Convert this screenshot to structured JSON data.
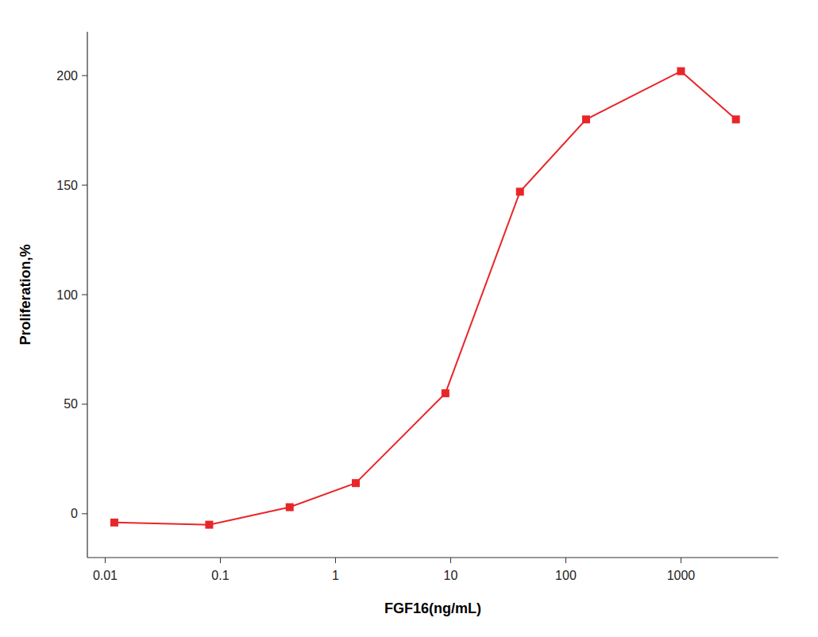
{
  "chart_data": {
    "type": "line",
    "x": [
      0.012,
      0.08,
      0.4,
      1.5,
      9.0,
      40.0,
      150.0,
      1000.0,
      3000.0
    ],
    "values": [
      -4.0,
      -5.0,
      3.0,
      14.0,
      55.0,
      147.0,
      180.0,
      202.0,
      180.0
    ],
    "color": "#e8262a",
    "marker": "square",
    "line_style": "solid",
    "xlabel": "FGF16(ng/mL)",
    "ylabel": "Proliferation,%",
    "xlim": [
      0.007,
      7000
    ],
    "ylim": [
      -20,
      220
    ],
    "xticks": [
      0.01,
      0.1,
      1,
      10,
      100,
      1000
    ],
    "yticks": [
      0,
      50,
      100,
      150,
      200
    ],
    "log": "x",
    "grid": false
  }
}
